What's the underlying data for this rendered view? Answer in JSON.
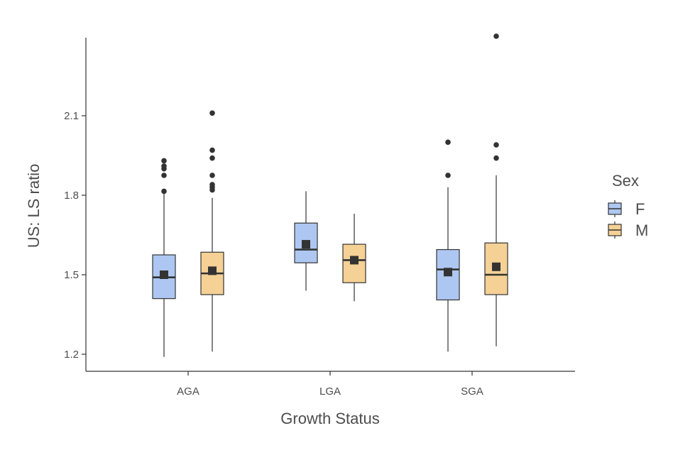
{
  "chart_data": {
    "type": "boxplot",
    "title": "",
    "xlabel": "Growth Status",
    "ylabel": "US: LS ratio",
    "categories": [
      "AGA",
      "LGA",
      "SGA"
    ],
    "y_ticks": [
      "1.2",
      "1.5",
      "1.8",
      "2.1"
    ],
    "ylim": [
      1.17,
      2.45
    ],
    "grid": false,
    "legend": {
      "title": "Sex",
      "placement": "right"
    },
    "series": [
      {
        "name": "F",
        "color": "#aec7f2",
        "boxes": [
          {
            "category": "AGA",
            "lower_whisker": 1.19,
            "q1": 1.41,
            "median": 1.49,
            "q3": 1.575,
            "upper_whisker": 1.81,
            "mean": 1.5,
            "outliers": [
              1.815,
              1.875,
              1.9,
              1.91,
              1.93
            ]
          },
          {
            "category": "LGA",
            "lower_whisker": 1.44,
            "q1": 1.545,
            "median": 1.595,
            "q3": 1.695,
            "upper_whisker": 1.815,
            "mean": 1.615,
            "outliers": []
          },
          {
            "category": "SGA",
            "lower_whisker": 1.21,
            "q1": 1.405,
            "median": 1.52,
            "q3": 1.595,
            "upper_whisker": 1.83,
            "mean": 1.51,
            "outliers": [
              1.875,
              2.0
            ]
          }
        ]
      },
      {
        "name": "M",
        "color": "#f5d196",
        "boxes": [
          {
            "category": "AGA",
            "lower_whisker": 1.21,
            "q1": 1.425,
            "median": 1.505,
            "q3": 1.585,
            "upper_whisker": 1.79,
            "mean": 1.515,
            "outliers": [
              1.82,
              1.83,
              1.84,
              1.875,
              1.94,
              1.97,
              2.11
            ]
          },
          {
            "category": "LGA",
            "lower_whisker": 1.4,
            "q1": 1.47,
            "median": 1.555,
            "q3": 1.615,
            "upper_whisker": 1.73,
            "mean": 1.555,
            "outliers": []
          },
          {
            "category": "SGA",
            "lower_whisker": 1.23,
            "q1": 1.425,
            "median": 1.5,
            "q3": 1.62,
            "upper_whisker": 1.875,
            "mean": 1.53,
            "outliers": [
              1.94,
              1.99,
              2.4
            ]
          }
        ]
      }
    ]
  }
}
